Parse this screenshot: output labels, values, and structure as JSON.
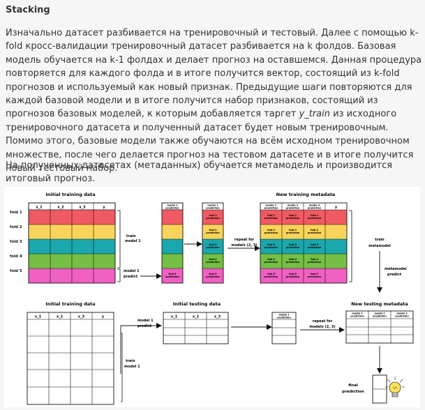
{
  "heading": "Stacking",
  "paragraph1": {
    "before_em": "Изначально датасет разбивается на тренировочный и тестовый. Далее с помощью k-fold кросс-валидации тренировочный датасет разбивается на k фолдов. Базовая модель обучается на k-1 фолдах и делает прогноз на оставшемся. Данная процедура повторяется для каждого фолда и в итоге получится вектор, состоящий из k-fold прогнозов и используемый как новый признак. Предыдущие шаги повторяются для каждой базовой модели и в итоге получится набор признаков, состоящий из прогнозов базовых моделей, к которым добавляется таргет ",
    "em": "y_train",
    "after_em": " из исходного тренировочного датасета и полученный датасет будет новым тренировочным. Помимо этого, базовые модели также обучаются на всём исходном тренировочном множестве, после чего делается прогноз на тестовом датасете и в итоге получится новый тестовый набор."
  },
  "paragraph2": "На полученных датасетах (метаданных) обучается метамодель и производится итоговый прогноз.",
  "diagram": {
    "titles": {
      "initial_training_top": "Initial training data",
      "new_training_metadata": "New training metadata",
      "initial_training_bottom": "Initial training data",
      "initial_testing": "Initial testing data",
      "new_testing_metadata": "New testing metadata"
    },
    "fold_labels": [
      "fold 1",
      "fold 2",
      "fold 3",
      "fold 4",
      "fold 5"
    ],
    "training_columns": [
      "x_1",
      "x_2",
      "x_3",
      "y"
    ],
    "testing_columns": [
      "x_1",
      "x_2",
      "x_3"
    ],
    "pred_header_1": [
      "model 1",
      "prediction"
    ],
    "pred_header_2": [
      "model 2",
      "prediction"
    ],
    "pred_header_3": [
      "model 3",
      "prediction"
    ],
    "fold_prediction_cells": [
      [
        "fold 1",
        "prediction"
      ],
      [
        "fold 2",
        "prediction"
      ],
      [
        "fold 3",
        "prediction"
      ],
      [
        "fold 4",
        "prediction"
      ],
      [
        "fold 5",
        "prediction"
      ]
    ],
    "annotations": {
      "train_model1_top": [
        "train",
        "model 1"
      ],
      "model1_predict_top": [
        "model 1",
        "predict"
      ],
      "repeat_top": [
        "repeat for",
        "models (2, 3)"
      ],
      "train_metamodel": [
        "train",
        "metamodel"
      ],
      "metamodel_predict": [
        "metamodel",
        "predict"
      ],
      "model1_predict_bottom": [
        "model 1",
        "predict"
      ],
      "train_model1_bottom": [
        "train",
        "model 1"
      ],
      "repeat_bottom": [
        "repeat for",
        "models (2, 3)"
      ],
      "final_prediction": [
        "final",
        "prediction"
      ]
    },
    "colors": {
      "fold1": "#f05a62",
      "fold2": "#fad45a",
      "fold3": "#1aa7ad",
      "fold4": "#74bf44",
      "fold5": "#ef60c1",
      "bulb": "#fce45a"
    }
  }
}
